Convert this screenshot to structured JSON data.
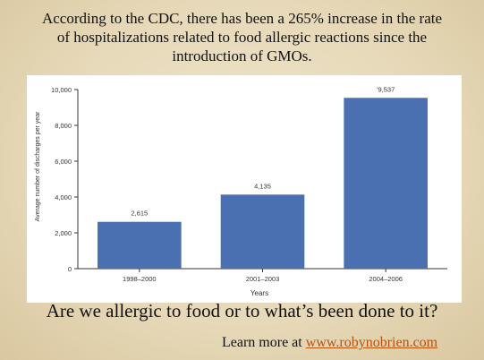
{
  "headline": "According to the CDC, there has been a 265% increase in the rate of hospitalizations related to food allergic reactions since the introduction of GMOs.",
  "question": "Are we allergic to food or to what’s been done to it?",
  "footer": {
    "prefix": "Learn more at ",
    "link_text": "www.robynobrien.com"
  },
  "colors": {
    "bar": "#4a70b2",
    "link": "#b8530e",
    "background": "#e8dcbf"
  },
  "chart_data": {
    "type": "bar",
    "categories": [
      "1998–2000",
      "2001–2003",
      "2004–2006"
    ],
    "values": [
      2615,
      4135,
      9537
    ],
    "value_labels": [
      "2,615",
      "4,135",
      "'9,537"
    ],
    "xlabel": "Years",
    "ylabel": "Average number of discharges per year",
    "ylim": [
      0,
      10000
    ],
    "yticks": [
      0,
      2000,
      4000,
      6000,
      8000,
      10000
    ],
    "ytick_labels": [
      "0",
      "2,000",
      "4,000",
      "6,000",
      "8,000",
      "10,000"
    ],
    "grid": false
  }
}
